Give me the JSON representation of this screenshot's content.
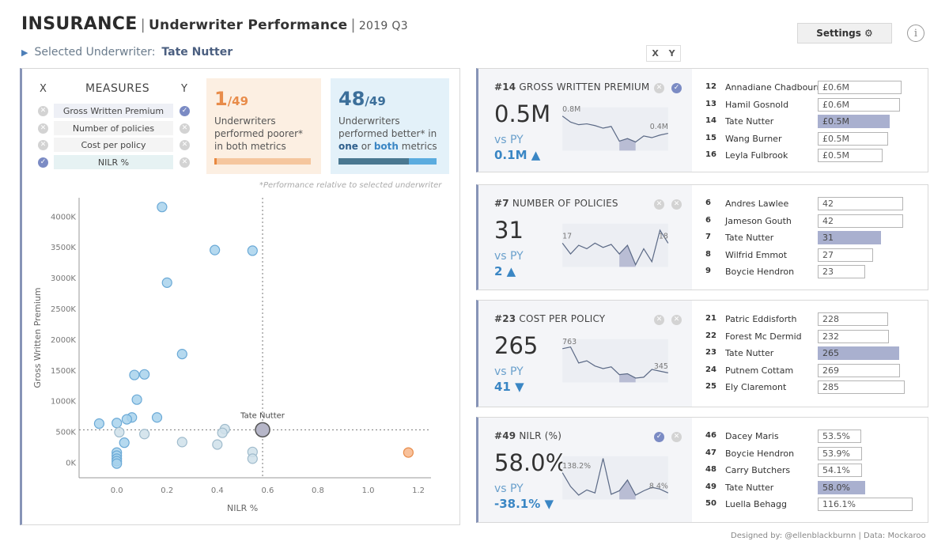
{
  "header": {
    "brand": "INSURANCE",
    "subtitle": "Underwriter Performance",
    "period": "2019 Q3",
    "settings_label": "Settings ⚙",
    "info_glyph": "i",
    "selected_prefix": "Selected Underwriter:",
    "selected_name": "Tate Nutter"
  },
  "measures": {
    "x_label": "X",
    "y_label": "Y",
    "heading": "MEASURES",
    "items": [
      {
        "label": "Gross Written Premium",
        "x": false,
        "y": true
      },
      {
        "label": "Number of policies",
        "x": false,
        "y": false
      },
      {
        "label": "Cost per policy",
        "x": false,
        "y": false
      },
      {
        "label": "NILR %",
        "x": true,
        "y": false
      }
    ]
  },
  "kpis": {
    "poorer": {
      "count": "1",
      "denominator": "/49",
      "text_line1": "Underwriters",
      "text_line2": "performed poorer*",
      "text_line3": "in both metrics",
      "bar_fill": 1
    },
    "better": {
      "count": "48",
      "denominator": "/49",
      "text_line1": "Underwriters",
      "text_line2": "performed better* in",
      "text_one": "one",
      "text_or": " or ",
      "text_both": "both",
      "text_end": " metrics",
      "bar_dark_fraction": 0.72
    }
  },
  "perf_note": "*Performance relative to selected underwriter",
  "scatter": {
    "ylabel": "Gross Written Premium",
    "xlabel": "NILR %",
    "yticks": [
      "4000K",
      "3500K",
      "3000K",
      "2500K",
      "2000K",
      "1500K",
      "1000K",
      "500K",
      "0K"
    ],
    "xticks": [
      "0.0",
      "0.2",
      "0.4",
      "0.6",
      "0.8",
      "1.0",
      "1.2"
    ],
    "ref_label": "Tate Nutter",
    "colors": {
      "better": "#a8d2ec",
      "poorer": "#f7b68a",
      "selected": "#b6b6c8",
      "neutral": "#cfe0ea"
    }
  },
  "chart_data": {
    "type": "scatter",
    "xlabel": "NILR %",
    "ylabel": "Gross Written Premium",
    "xlim": [
      -0.15,
      1.25
    ],
    "ylim": [
      -250,
      4300
    ],
    "reference": {
      "name": "Tate Nutter",
      "x": 0.58,
      "y": 530
    },
    "points": [
      {
        "x": 0.18,
        "y": 4150,
        "c": "better"
      },
      {
        "x": 0.39,
        "y": 3450,
        "c": "better"
      },
      {
        "x": 0.54,
        "y": 3440,
        "c": "better"
      },
      {
        "x": 0.2,
        "y": 2920,
        "c": "better"
      },
      {
        "x": 0.26,
        "y": 1760,
        "c": "better"
      },
      {
        "x": 0.07,
        "y": 1420,
        "c": "better"
      },
      {
        "x": 0.11,
        "y": 1430,
        "c": "better"
      },
      {
        "x": 0.08,
        "y": 1020,
        "c": "better"
      },
      {
        "x": 0.16,
        "y": 730,
        "c": "better"
      },
      {
        "x": 0.06,
        "y": 730,
        "c": "better"
      },
      {
        "x": 0.04,
        "y": 700,
        "c": "better"
      },
      {
        "x": -0.07,
        "y": 630,
        "c": "better"
      },
      {
        "x": 0.0,
        "y": 640,
        "c": "better"
      },
      {
        "x": 0.43,
        "y": 540,
        "c": "neutral"
      },
      {
        "x": 0.42,
        "y": 480,
        "c": "neutral"
      },
      {
        "x": 0.11,
        "y": 460,
        "c": "neutral"
      },
      {
        "x": 0.01,
        "y": 490,
        "c": "neutral"
      },
      {
        "x": 0.26,
        "y": 330,
        "c": "neutral"
      },
      {
        "x": 0.03,
        "y": 320,
        "c": "better"
      },
      {
        "x": 0.4,
        "y": 290,
        "c": "neutral"
      },
      {
        "x": 0.54,
        "y": 170,
        "c": "neutral"
      },
      {
        "x": 0.54,
        "y": 60,
        "c": "neutral"
      },
      {
        "x": 0.0,
        "y": 160,
        "c": "better"
      },
      {
        "x": 0.0,
        "y": 110,
        "c": "better"
      },
      {
        "x": 0.0,
        "y": 60,
        "c": "better"
      },
      {
        "x": 0.0,
        "y": 20,
        "c": "better"
      },
      {
        "x": 0.0,
        "y": -20,
        "c": "better"
      },
      {
        "x": 1.16,
        "y": 160,
        "c": "poorer"
      }
    ]
  },
  "cards": [
    {
      "rank": "#14",
      "title": "GROSS WRITTEN PREMIUM",
      "value": "0.5M",
      "vs_label": "vs PY",
      "delta": "0.1M ▲",
      "x_on": false,
      "y_on": true,
      "spark_start_label": "0.8M",
      "spark_end_label": "0.4M",
      "spark": [
        0.8,
        0.66,
        0.6,
        0.62,
        0.58,
        0.52,
        0.56,
        0.22,
        0.28,
        0.2,
        0.34,
        0.3,
        0.36,
        0.4
      ],
      "rows": [
        {
          "rank": "12",
          "name": "Annadiane Chadbourn",
          "value": "£0.6M",
          "w": 0.88,
          "hl": false
        },
        {
          "rank": "13",
          "name": "Hamil Gosnold",
          "value": "£0.6M",
          "w": 0.87,
          "hl": false
        },
        {
          "rank": "14",
          "name": "Tate Nutter",
          "value": "£0.5M",
          "w": 0.76,
          "hl": true
        },
        {
          "rank": "15",
          "name": "Wang Burner",
          "value": "£0.5M",
          "w": 0.74,
          "hl": false
        },
        {
          "rank": "16",
          "name": "Leyla Fulbrook",
          "value": "£0.5M",
          "w": 0.68,
          "hl": false
        }
      ]
    },
    {
      "rank": "#7",
      "title": "NUMBER OF POLICIES",
      "value": "31",
      "vs_label": "vs PY",
      "delta": "2 ▲",
      "x_on": false,
      "y_on": false,
      "spark_start_label": "17",
      "spark_end_label": "18",
      "spark": [
        0.55,
        0.3,
        0.5,
        0.42,
        0.55,
        0.45,
        0.52,
        0.3,
        0.5,
        0.05,
        0.42,
        0.12,
        0.85,
        0.55
      ],
      "rows": [
        {
          "rank": "6",
          "name": "Andres Lawlee",
          "value": "42",
          "w": 0.9,
          "hl": false
        },
        {
          "rank": "6",
          "name": "Jameson Gouth",
          "value": "42",
          "w": 0.9,
          "hl": false
        },
        {
          "rank": "7",
          "name": "Tate Nutter",
          "value": "31",
          "w": 0.67,
          "hl": true
        },
        {
          "rank": "8",
          "name": "Wilfrid Emmot",
          "value": "27",
          "w": 0.58,
          "hl": false
        },
        {
          "rank": "9",
          "name": "Boycie Hendron",
          "value": "23",
          "w": 0.5,
          "hl": false
        }
      ]
    },
    {
      "rank": "#23",
      "title": "COST PER POLICY",
      "value": "265",
      "vs_label": "vs PY",
      "delta": "41 ▼",
      "x_on": false,
      "y_on": false,
      "spark_start_label": "763",
      "spark_end_label": "345",
      "spark": [
        0.78,
        0.82,
        0.45,
        0.5,
        0.38,
        0.32,
        0.36,
        0.18,
        0.2,
        0.1,
        0.12,
        0.3,
        0.26,
        0.22
      ],
      "rows": [
        {
          "rank": "21",
          "name": "Patric Eddisforth",
          "value": "228",
          "w": 0.74,
          "hl": false
        },
        {
          "rank": "22",
          "name": "Forest Mc Dermid",
          "value": "232",
          "w": 0.75,
          "hl": false
        },
        {
          "rank": "23",
          "name": "Tate Nutter",
          "value": "265",
          "w": 0.86,
          "hl": true
        },
        {
          "rank": "24",
          "name": "Putnem Cottam",
          "value": "269",
          "w": 0.87,
          "hl": false
        },
        {
          "rank": "25",
          "name": "Ely Claremont",
          "value": "285",
          "w": 0.92,
          "hl": false
        }
      ]
    },
    {
      "rank": "#49",
      "title": "NILR (%)",
      "value": "58.0%",
      "vs_label": "vs PY",
      "delta": "-38.1% ▼",
      "x_on": true,
      "y_on": false,
      "spark_start_label": "138.2%",
      "spark_end_label": "8.4%",
      "spark": [
        0.62,
        0.3,
        0.1,
        0.22,
        0.15,
        0.95,
        0.12,
        0.2,
        0.45,
        0.1,
        0.2,
        0.28,
        0.24,
        0.15
      ],
      "rows": [
        {
          "rank": "46",
          "name": "Dacey Maris",
          "value": "53.5%",
          "w": 0.46,
          "hl": false
        },
        {
          "rank": "47",
          "name": "Boycie Hendron",
          "value": "53.9%",
          "w": 0.47,
          "hl": false
        },
        {
          "rank": "48",
          "name": "Carry Butchers",
          "value": "54.1%",
          "w": 0.47,
          "hl": false
        },
        {
          "rank": "49",
          "name": "Tate Nutter",
          "value": "58.0%",
          "w": 0.5,
          "hl": true
        },
        {
          "rank": "50",
          "name": "Luella Behagg",
          "value": "116.1%",
          "w": 1.0,
          "hl": false
        }
      ]
    }
  ],
  "xy_header": {
    "x": "X",
    "y": "Y"
  },
  "footer": "Designed by: @ellenblackburnn | Data: Mockaroo",
  "colors": {
    "accent": "#8794b7",
    "orange": "#e88c4a",
    "blue": "#3c6f9a",
    "highlight_bar": "#a9b0cf"
  }
}
